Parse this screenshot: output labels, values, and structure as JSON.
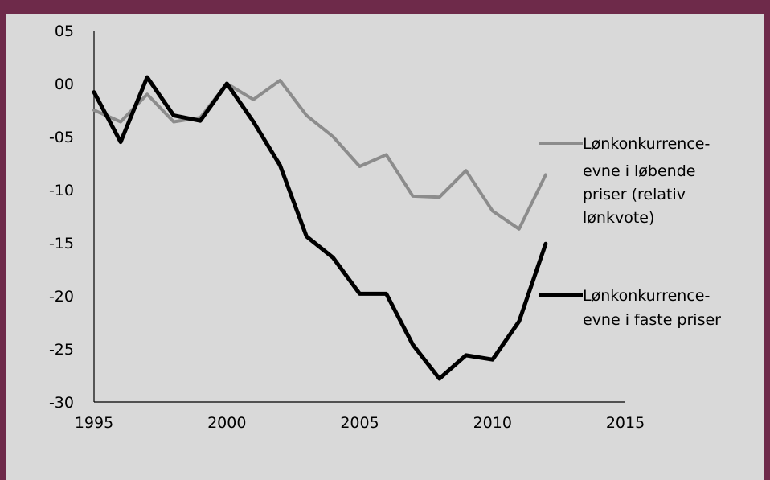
{
  "chart_data": {
    "type": "line",
    "xlim": [
      1995,
      2015
    ],
    "ylim": [
      -30,
      5
    ],
    "x_ticks": [
      "1995",
      "2000",
      "2005",
      "2010",
      "2015"
    ],
    "y_ticks": [
      "05",
      "00",
      "-05",
      "-10",
      "-15",
      "-20",
      "-25",
      "-30"
    ],
    "grid": false,
    "legend_position": "right",
    "series": [
      {
        "name": "Lønkonkurrence-evne i løbende priser (relativ lønkvote)",
        "color": "#8c8c8c",
        "x": [
          1995,
          1996,
          1997,
          1998,
          1999,
          2000,
          2001,
          2002,
          2003,
          2004,
          2005,
          2006,
          2007,
          2008,
          2009,
          2010,
          2011,
          2012
        ],
        "y": [
          -2.5,
          -3.6,
          -1.0,
          -3.6,
          -3.2,
          0.0,
          -1.5,
          0.3,
          -3.0,
          -5.0,
          -7.8,
          -6.7,
          -10.6,
          -10.7,
          -8.2,
          -12.0,
          -13.7,
          -8.6
        ]
      },
      {
        "name": "Lønkonkurrence-evne i faste priser",
        "color": "#000000",
        "x": [
          1995,
          1996,
          1997,
          1998,
          1999,
          2000,
          2001,
          2002,
          2003,
          2004,
          2005,
          2006,
          2007,
          2008,
          2009,
          2010,
          2011,
          2012
        ],
        "y": [
          -0.8,
          -5.5,
          0.6,
          -3.0,
          -3.5,
          0.0,
          -3.6,
          -7.7,
          -14.4,
          -16.4,
          -19.8,
          -19.8,
          -24.6,
          -27.8,
          -25.6,
          -26.0,
          -22.4,
          -15.1
        ]
      }
    ]
  },
  "legend": {
    "gray_lines": [
      "Lønkonkurrence-",
      "evne i løbende",
      "priser (relativ",
      "lønkvote)"
    ],
    "black_lines": [
      "Lønkonkurrence-",
      "evne i faste priser"
    ]
  }
}
